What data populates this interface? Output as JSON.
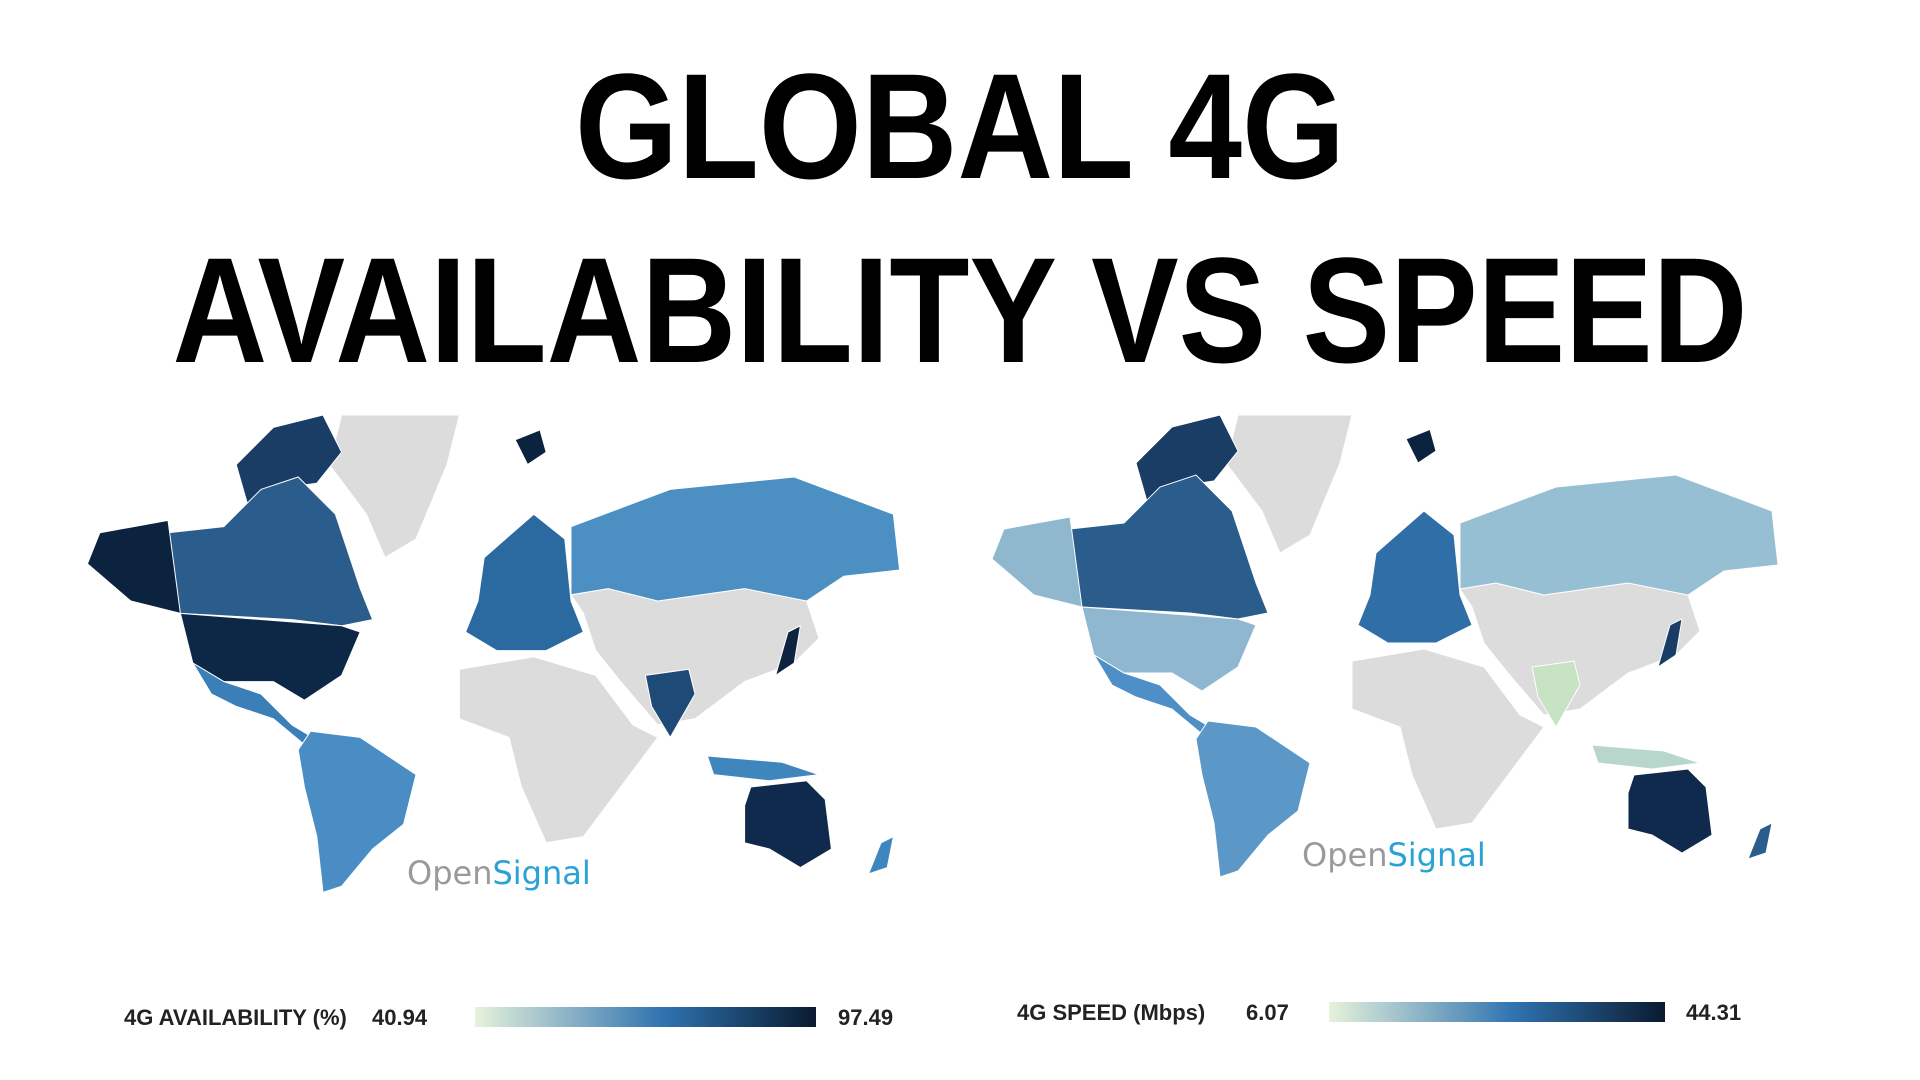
{
  "title": {
    "line1": "GLOBAL 4G",
    "line2": "AVAILABILITY VS SPEED"
  },
  "maps": [
    {
      "brand": {
        "open": "Open",
        "signal": "Signal"
      },
      "legend": {
        "label": "4G AVAILABILITY (%)",
        "min": 40.94,
        "max": 97.49
      }
    },
    {
      "brand": {
        "open": "Open",
        "signal": "Signal"
      },
      "legend": {
        "label": "4G SPEED (Mbps)",
        "min": 6.07,
        "max": 44.31
      }
    }
  ]
}
